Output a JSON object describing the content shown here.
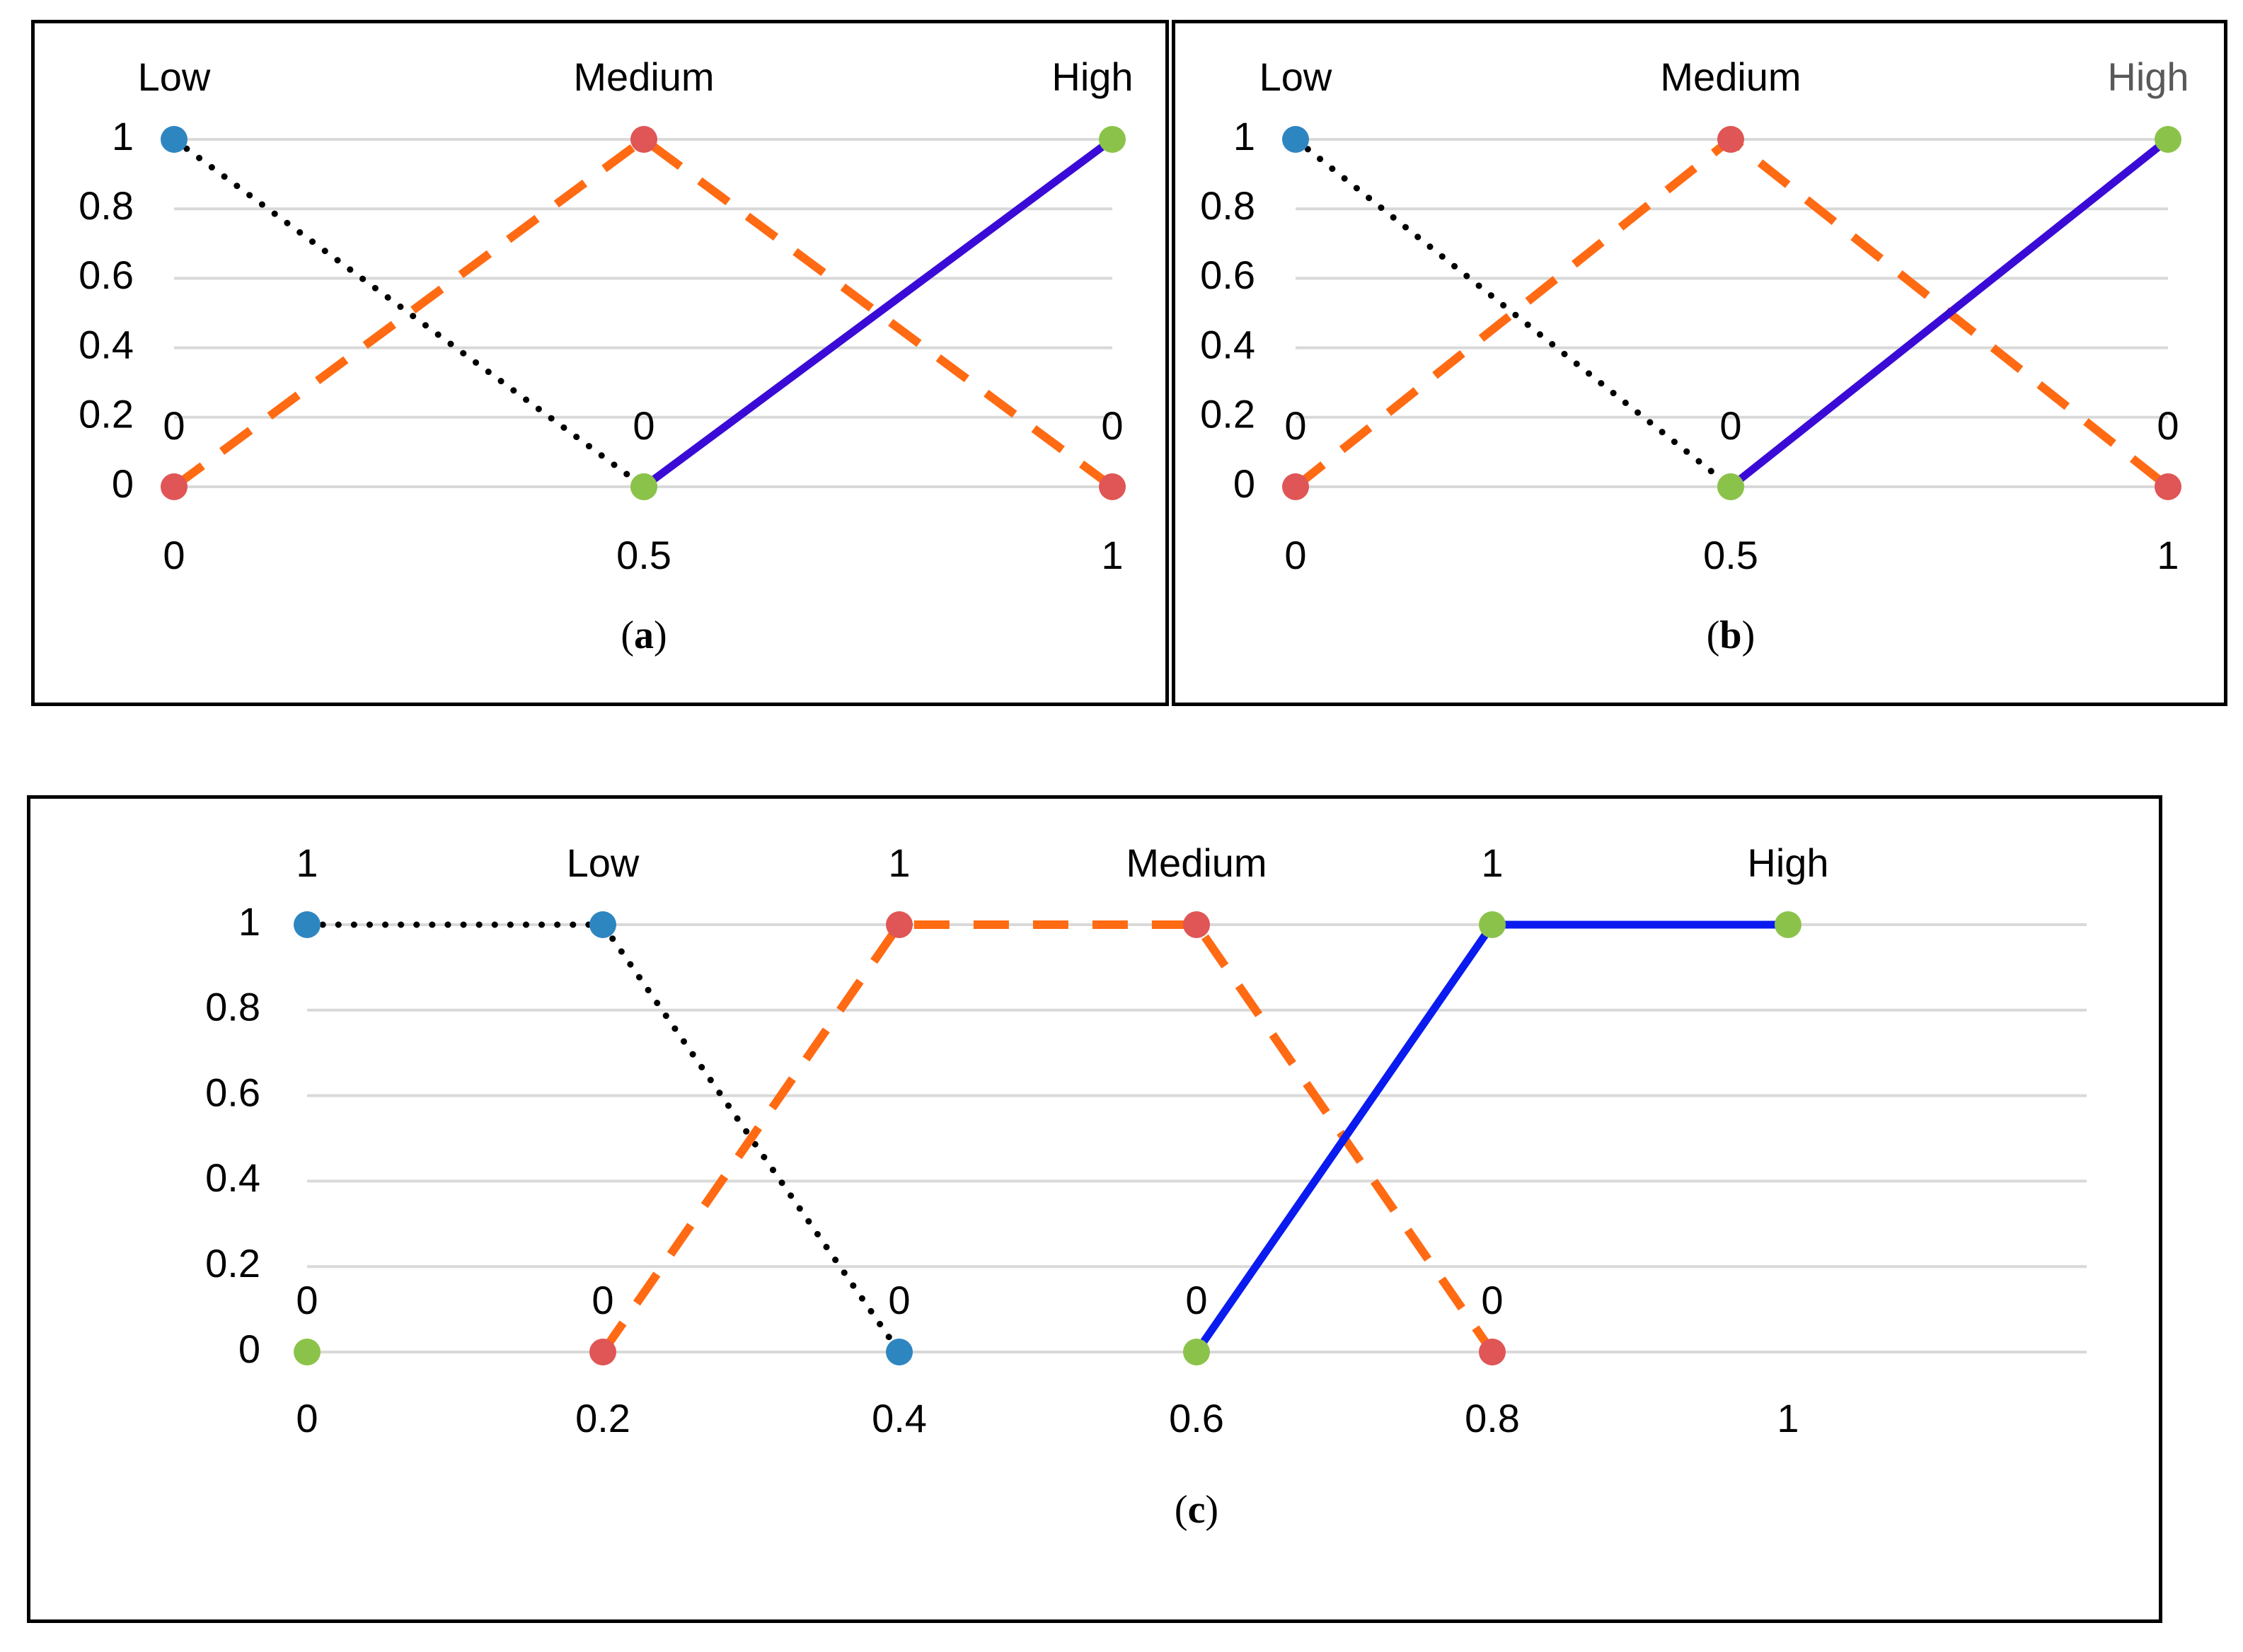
{
  "colors": {
    "low_marker": "#2E86C1",
    "medium_marker": "#E05555",
    "high_marker": "#8BC34A",
    "low_line": "#000000",
    "medium_line": "#FF6A13",
    "high_line_ab": "#3A0BD6",
    "high_line_c": "#0A1BF0",
    "grid": "#D9D9D9",
    "high_title_b": "#595959"
  },
  "chart_data": [
    {
      "id": "a",
      "type": "line",
      "caption_letter": "a",
      "caption_open": "(",
      "caption_close": ")",
      "x_categories": [
        "0",
        "0.5",
        "1"
      ],
      "y_ticks": [
        "0",
        "0.2",
        "0.4",
        "0.6",
        "0.8",
        "1"
      ],
      "ylim": [
        0,
        1
      ],
      "grid": true,
      "series": [
        {
          "name": "Low",
          "line_style": "dotted",
          "values": [
            1,
            0
          ],
          "x_index": [
            0,
            1
          ],
          "marker_colors": [
            "low_marker",
            "high_marker"
          ]
        },
        {
          "name": "Medium",
          "line_style": "dashed",
          "values": [
            0,
            1,
            0
          ],
          "x_index": [
            0,
            1,
            2
          ],
          "marker_colors": [
            "medium_marker",
            "medium_marker",
            "medium_marker"
          ]
        },
        {
          "name": "High",
          "line_style": "solid",
          "values": [
            0,
            1
          ],
          "x_index": [
            1,
            2
          ],
          "marker_colors": [
            "high_marker",
            "high_marker"
          ]
        }
      ],
      "top_labels": [
        "Low",
        "Medium",
        "High"
      ],
      "zero_labels": [
        "0",
        "0",
        "0"
      ]
    },
    {
      "id": "b",
      "type": "line",
      "caption_letter": "b",
      "caption_open": "(",
      "caption_close": ")",
      "x_categories": [
        "0",
        "0.5",
        "1"
      ],
      "y_ticks": [
        "0",
        "0.2",
        "0.4",
        "0.6",
        "0.8",
        "1"
      ],
      "ylim": [
        0,
        1
      ],
      "grid": true,
      "series": [
        {
          "name": "Low",
          "line_style": "dotted",
          "values": [
            1,
            0
          ],
          "x_index": [
            0,
            1
          ],
          "marker_colors": [
            "low_marker",
            "high_marker"
          ]
        },
        {
          "name": "Medium",
          "line_style": "dashed",
          "values": [
            0,
            1,
            0
          ],
          "x_index": [
            0,
            1,
            2
          ],
          "marker_colors": [
            "medium_marker",
            "medium_marker",
            "medium_marker"
          ]
        },
        {
          "name": "High",
          "line_style": "solid",
          "values": [
            0,
            1
          ],
          "x_index": [
            1,
            2
          ],
          "marker_colors": [
            "high_marker",
            "high_marker"
          ]
        }
      ],
      "top_labels": [
        "Low",
        "Medium",
        "High"
      ],
      "zero_labels": [
        "0",
        "0",
        "0"
      ]
    },
    {
      "id": "c",
      "type": "line",
      "caption_letter": "c",
      "caption_open": "(",
      "caption_close": ")",
      "x_categories": [
        "0",
        "0.2",
        "0.4",
        "0.6",
        "0.8",
        "1"
      ],
      "y_ticks": [
        "0",
        "0.2",
        "0.4",
        "0.6",
        "0.8",
        "1"
      ],
      "ylim": [
        0,
        1
      ],
      "grid": true,
      "series": [
        {
          "name": "Low",
          "line_style": "dotted",
          "values": [
            1,
            1,
            0
          ],
          "x_index": [
            0,
            1,
            2
          ],
          "marker_colors": [
            "low_marker",
            "low_marker",
            "low_marker"
          ]
        },
        {
          "name": "Medium",
          "line_style": "dashed",
          "values": [
            0,
            1,
            1,
            0
          ],
          "x_index": [
            1,
            2,
            3,
            4
          ],
          "marker_colors": [
            "medium_marker",
            "medium_marker",
            "medium_marker",
            "medium_marker"
          ]
        },
        {
          "name": "High",
          "line_style": "solid",
          "values": [
            0,
            1,
            1
          ],
          "x_index": [
            3,
            4,
            5
          ],
          "marker_colors": [
            "high_marker",
            "high_marker",
            "high_marker"
          ]
        }
      ],
      "extra_point": {
        "x_index": 0,
        "value": 0,
        "color": "high_marker"
      },
      "top_labels": [
        "1",
        "Low",
        "1",
        "Medium",
        "1",
        "High"
      ],
      "zero_labels": [
        "0",
        "0",
        "0",
        "0",
        "0"
      ]
    }
  ]
}
